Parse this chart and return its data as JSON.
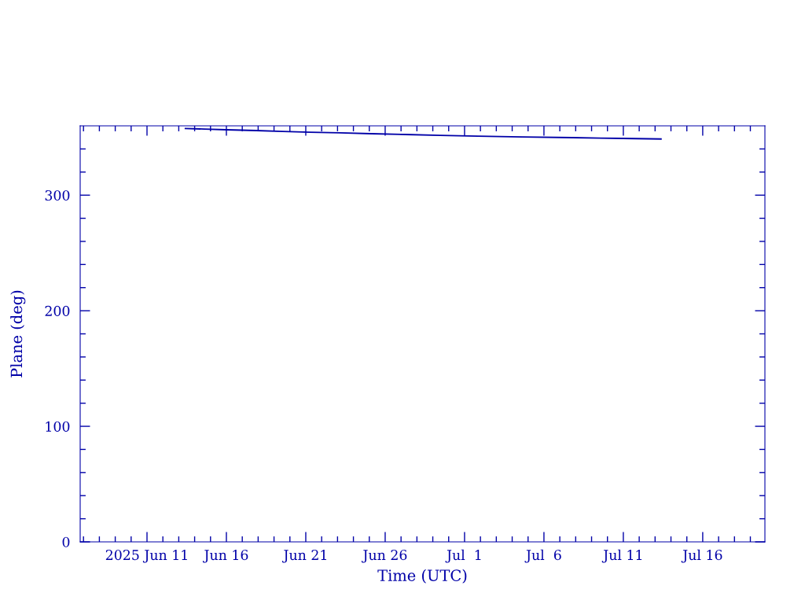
{
  "chart_data": {
    "type": "line",
    "xlabel": "Time (UTC)",
    "ylabel": "Plane (deg)",
    "x": [
      "2025-06-13T10:00",
      "2025-06-14T15:00",
      "2025-06-16T00:00",
      "2025-06-17T21:00",
      "2025-06-19T13:00",
      "2025-06-21T06:00",
      "2025-06-23T03:00",
      "2025-06-25T03:00",
      "2025-06-27T06:00",
      "2025-06-29T11:00",
      "2025-07-01T20:00",
      "2025-07-04T15:00",
      "2025-07-07T19:00",
      "2025-07-10T23:00",
      "2025-07-13T09:00"
    ],
    "values": [
      357.7,
      357.2,
      356.6,
      355.9,
      355.2,
      354.5,
      353.9,
      353.2,
      352.5,
      351.8,
      351.1,
      350.4,
      349.8,
      349.1,
      348.6
    ],
    "color": "#0000a8",
    "marker": "none",
    "line_style": "solid",
    "grid": false,
    "legend": false,
    "xlim": [
      "2025-06-06T19:00",
      "2025-07-19T22:00"
    ],
    "xticks": [
      {
        "value": "2025-06-07",
        "label": null
      },
      {
        "value": "2025-06-08",
        "label": null
      },
      {
        "value": "2025-06-09",
        "label": null
      },
      {
        "value": "2025-06-10",
        "label": null
      },
      {
        "value": "2025-06-11",
        "label": "2025 Jun 11"
      },
      {
        "value": "2025-06-12",
        "label": null
      },
      {
        "value": "2025-06-13",
        "label": null
      },
      {
        "value": "2025-06-14",
        "label": null
      },
      {
        "value": "2025-06-15",
        "label": null
      },
      {
        "value": "2025-06-16",
        "label": "Jun 16"
      },
      {
        "value": "2025-06-17",
        "label": null
      },
      {
        "value": "2025-06-18",
        "label": null
      },
      {
        "value": "2025-06-19",
        "label": null
      },
      {
        "value": "2025-06-20",
        "label": null
      },
      {
        "value": "2025-06-21",
        "label": "Jun 21"
      },
      {
        "value": "2025-06-22",
        "label": null
      },
      {
        "value": "2025-06-23",
        "label": null
      },
      {
        "value": "2025-06-24",
        "label": null
      },
      {
        "value": "2025-06-25",
        "label": null
      },
      {
        "value": "2025-06-26",
        "label": "Jun 26"
      },
      {
        "value": "2025-06-27",
        "label": null
      },
      {
        "value": "2025-06-28",
        "label": null
      },
      {
        "value": "2025-06-29",
        "label": null
      },
      {
        "value": "2025-06-30",
        "label": null
      },
      {
        "value": "2025-07-01",
        "label": "Jul  1"
      },
      {
        "value": "2025-07-02",
        "label": null
      },
      {
        "value": "2025-07-03",
        "label": null
      },
      {
        "value": "2025-07-04",
        "label": null
      },
      {
        "value": "2025-07-05",
        "label": null
      },
      {
        "value": "2025-07-06",
        "label": "Jul  6"
      },
      {
        "value": "2025-07-07",
        "label": null
      },
      {
        "value": "2025-07-08",
        "label": null
      },
      {
        "value": "2025-07-09",
        "label": null
      },
      {
        "value": "2025-07-10",
        "label": null
      },
      {
        "value": "2025-07-11",
        "label": "Jul 11"
      },
      {
        "value": "2025-07-12",
        "label": null
      },
      {
        "value": "2025-07-13",
        "label": null
      },
      {
        "value": "2025-07-14",
        "label": null
      },
      {
        "value": "2025-07-15",
        "label": null
      },
      {
        "value": "2025-07-16",
        "label": "Jul 16"
      },
      {
        "value": "2025-07-17",
        "label": null
      },
      {
        "value": "2025-07-18",
        "label": null
      },
      {
        "value": "2025-07-19",
        "label": null
      }
    ],
    "ylim": [
      0,
      360
    ],
    "yticks": [
      0,
      {
        "value": 20,
        "label": null
      },
      {
        "value": 40,
        "label": null
      },
      {
        "value": 60,
        "label": null
      },
      {
        "value": 80,
        "label": null
      },
      100,
      {
        "value": 120,
        "label": null
      },
      {
        "value": 140,
        "label": null
      },
      {
        "value": 160,
        "label": null
      },
      {
        "value": 180,
        "label": null
      },
      200,
      {
        "value": 220,
        "label": null
      },
      {
        "value": 240,
        "label": null
      },
      {
        "value": 260,
        "label": null
      },
      {
        "value": 280,
        "label": null
      },
      300,
      {
        "value": 320,
        "label": null
      },
      {
        "value": 340,
        "label": null
      }
    ]
  }
}
